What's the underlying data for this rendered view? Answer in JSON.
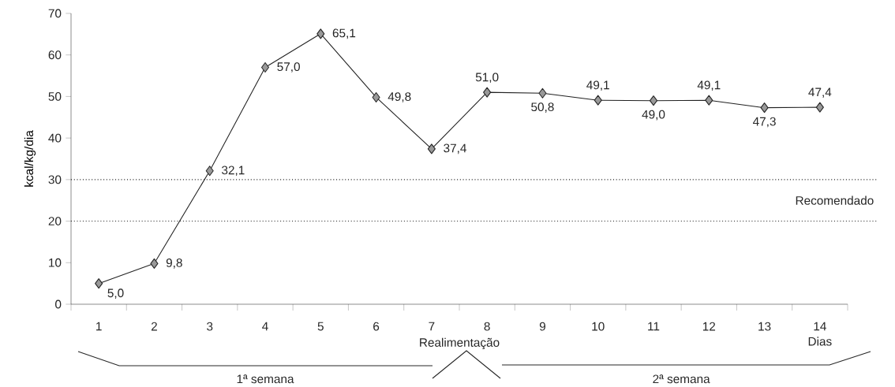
{
  "chart_data": {
    "type": "line",
    "ylabel": "kcal/kg/dia",
    "xlabel": "Dias",
    "categories": [
      "1",
      "2",
      "3",
      "4",
      "5",
      "6",
      "7",
      "8",
      "9",
      "10",
      "11",
      "12",
      "13",
      "14"
    ],
    "values": [
      5.0,
      9.8,
      32.1,
      57.0,
      65.1,
      49.8,
      37.4,
      51.0,
      50.8,
      49.1,
      49.0,
      49.1,
      47.3,
      47.4
    ],
    "value_labels": [
      "5,0",
      "9,8",
      "32,1",
      "57,0",
      "65,1",
      "49,8",
      "37,4",
      "51,0",
      "50,8",
      "49,1",
      "49,0",
      "49,1",
      "47,3",
      "47,4"
    ],
    "color": "#222222",
    "marker": "diamond",
    "ylim": [
      0,
      70
    ],
    "yticks": [
      0,
      10,
      20,
      30,
      40,
      50,
      60,
      70
    ],
    "ref_lines": [
      {
        "axis": "y",
        "value": 30,
        "line_style": "dotted"
      },
      {
        "axis": "y",
        "value": 20,
        "line_style": "dotted"
      }
    ],
    "annotations": [
      "Recomendado",
      "Realimentação",
      "1ª semana",
      "2ª semana"
    ]
  }
}
